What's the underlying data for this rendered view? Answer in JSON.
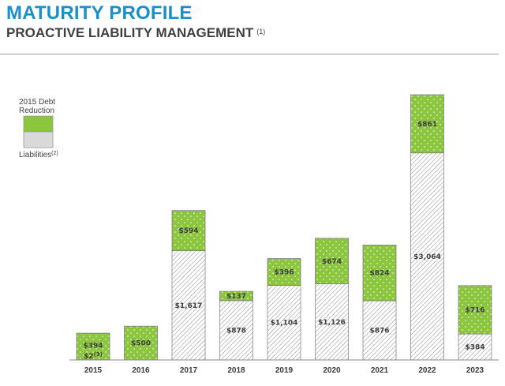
{
  "header": {
    "title": "MATURITY PROFILE",
    "subtitle": "PROACTIVE LIABILITY MANAGEMENT",
    "subtitle_note": "(1)"
  },
  "colors": {
    "title": "#1a8fc9",
    "reduction_fill": "#8cc63f",
    "liabilities_fill": "#ffffff",
    "liabilities_hatch": "#8a8a8a"
  },
  "chart_data": {
    "type": "bar",
    "stacked": true,
    "categories": [
      "2015",
      "2016",
      "2017",
      "2018",
      "2019",
      "2020",
      "2021",
      "2022",
      "2023"
    ],
    "series": [
      {
        "name": "Liabilities",
        "note": "(2)",
        "values": [
          2,
          0,
          1617,
          878,
          1104,
          1126,
          876,
          3064,
          384
        ],
        "labels": [
          "$2",
          "",
          "$1,617",
          "$878",
          "$1,104",
          "$1,126",
          "$876",
          "$3,064",
          "$384"
        ],
        "label_notes": [
          "(3)",
          "",
          "",
          "",
          "",
          "",
          "",
          "",
          ""
        ]
      },
      {
        "name": "2015 Debt Reduction",
        "values": [
          394,
          500,
          594,
          137,
          396,
          674,
          824,
          861,
          716
        ],
        "labels": [
          "$394",
          "$500",
          "$594",
          "$137",
          "$396",
          "$674",
          "$824",
          "$861",
          "$716"
        ]
      }
    ],
    "ylim": [
      0,
      3925
    ],
    "grid": false,
    "legend_position": "top-left"
  }
}
